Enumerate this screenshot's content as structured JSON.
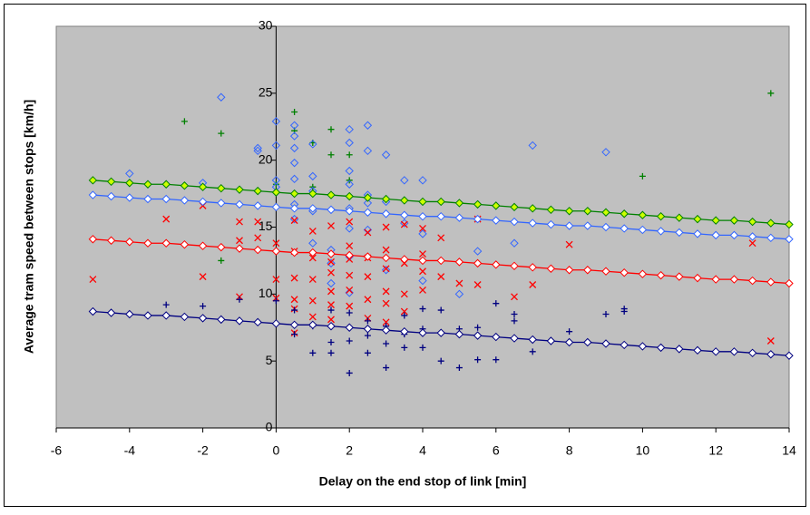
{
  "chart_data": {
    "type": "scatter",
    "x_label": "Delay on the end stop of link [min]",
    "y_label": "Average tram speed between stops [km/h]",
    "xlim": [
      -6,
      14
    ],
    "xticks": [
      -6,
      -4,
      -2,
      0,
      2,
      4,
      6,
      8,
      10,
      12,
      14
    ],
    "ylim": [
      0,
      30
    ],
    "yticks": [
      0,
      5,
      10,
      15,
      20,
      25,
      30
    ],
    "grid": false,
    "background": "#c0c0c0",
    "series": [
      {
        "mode": "markers",
        "marker": "plus",
        "color": "#008000",
        "x": [
          -2.5,
          -1.5,
          -1.5,
          0.5,
          0.5,
          1,
          1.5,
          1.5,
          2,
          2,
          13.5,
          10,
          1,
          0
        ],
        "values": [
          22.9,
          22,
          12.5,
          23.6,
          22.2,
          21.3,
          22.3,
          20.4,
          20.4,
          18.5,
          25,
          18.8,
          18,
          18.2
        ]
      },
      {
        "mode": "markers",
        "marker": "diamond",
        "color": "#3366ff",
        "x": [
          -4,
          -2,
          -1.5,
          -0.5,
          -0.5,
          0,
          0,
          0,
          0,
          0.5,
          0.5,
          0.5,
          0.5,
          0.5,
          0.5,
          0.5,
          1,
          1,
          1,
          1,
          1,
          1.5,
          1.5,
          1.5,
          2,
          2,
          2,
          2,
          2,
          2,
          2,
          2,
          2.5,
          2.5,
          2.5,
          2.5,
          2.5,
          3,
          3,
          3.5,
          3.5,
          4,
          4,
          4,
          5,
          5.5,
          6.5,
          7,
          9,
          1.5,
          3
        ],
        "values": [
          19,
          18.3,
          24.7,
          20.7,
          20.9,
          22.9,
          21.1,
          18.5,
          18,
          22.6,
          21.8,
          20.9,
          19.8,
          18.6,
          16.7,
          15.6,
          21.2,
          18.8,
          17.7,
          16.2,
          13.8,
          16.3,
          13.3,
          10.8,
          22.3,
          21.3,
          19.2,
          18.2,
          16.4,
          14.9,
          12.8,
          10.1,
          22.6,
          20.7,
          17.4,
          16.8,
          14.8,
          20.4,
          16.9,
          18.5,
          15.3,
          18.5,
          14.5,
          11,
          10,
          13.2,
          13.8,
          21.1,
          20.6,
          12.3,
          11.8
        ]
      },
      {
        "mode": "markers",
        "marker": "x",
        "color": "#ff0000",
        "x": [
          -5,
          -3,
          -2,
          -2,
          -1,
          -1,
          -1,
          -0.5,
          -0.5,
          0,
          0,
          0,
          0.5,
          0.5,
          0.5,
          0.5,
          0.5,
          0.5,
          1,
          1,
          1,
          1,
          1,
          1.5,
          1.5,
          1.5,
          1.5,
          1.5,
          1.5,
          2,
          2,
          2,
          2,
          2,
          2,
          2.5,
          2.5,
          2.5,
          2.5,
          2.5,
          3,
          3,
          3,
          3,
          3,
          3,
          3.5,
          3.5,
          3.5,
          3.5,
          4,
          4,
          4,
          4,
          4.5,
          4.5,
          5,
          5.5,
          5.5,
          6.5,
          7,
          8,
          13,
          13.5
        ],
        "values": [
          11.1,
          15.6,
          16.6,
          11.3,
          15.4,
          14,
          9.8,
          15.4,
          14.2,
          13.8,
          11.1,
          9.7,
          15.5,
          13.2,
          11.2,
          9.6,
          8.9,
          7.1,
          14.7,
          12.7,
          11.1,
          9.5,
          8.3,
          15.1,
          12.4,
          11.6,
          10.2,
          9.2,
          8.1,
          15.4,
          13.6,
          12.6,
          11.4,
          10.3,
          9.1,
          14.6,
          12.7,
          11.3,
          9.6,
          8.2,
          15,
          13.3,
          11.9,
          10.2,
          9.3,
          7.9,
          15.2,
          12.3,
          10,
          8.7,
          14.9,
          13,
          11.7,
          10.3,
          14.2,
          11.3,
          10.8,
          15.6,
          10.7,
          9.8,
          10.7,
          13.7,
          13.8,
          6.5
        ]
      },
      {
        "mode": "markers",
        "marker": "plus",
        "color": "#000080",
        "x": [
          -3,
          -2,
          -1,
          0,
          0.5,
          0.5,
          1,
          1,
          1.5,
          1.5,
          1.5,
          1.5,
          2,
          2,
          2,
          2.5,
          2.5,
          2.5,
          3,
          3,
          3,
          3.5,
          3.5,
          3.5,
          4,
          4,
          4,
          4.5,
          4.5,
          5,
          5,
          5.5,
          5.5,
          6,
          6,
          6.5,
          6.5,
          7,
          8,
          9,
          9.5,
          9.5
        ],
        "values": [
          9.2,
          9.1,
          9.6,
          9.5,
          8.8,
          7,
          7.6,
          5.6,
          8.8,
          7.6,
          6.4,
          5.6,
          8.6,
          6.5,
          4.1,
          8,
          6.9,
          5.6,
          7.6,
          6.3,
          4.5,
          8.4,
          7,
          6,
          8.9,
          7.4,
          6,
          8.8,
          5,
          7.4,
          4.5,
          7.5,
          5.1,
          9.3,
          5.1,
          8.5,
          8,
          5.7,
          7.2,
          8.5,
          8.9,
          8.7
        ]
      },
      {
        "mode": "line",
        "marker": "diamond",
        "color": "#008000",
        "marker_fill": "#ccff00",
        "x": [
          -5,
          -4.5,
          -4,
          -3.5,
          -3,
          -2.5,
          -2,
          -1.5,
          -1,
          -0.5,
          0,
          0.5,
          1,
          1.5,
          2,
          2.5,
          3,
          3.5,
          4,
          4.5,
          5,
          5.5,
          6,
          6.5,
          7,
          7.5,
          8,
          8.5,
          9,
          9.5,
          10,
          10.5,
          11,
          11.5,
          12,
          12.5,
          13,
          13.5,
          14
        ],
        "values": [
          18.5,
          18.4,
          18.3,
          18.2,
          18.2,
          18.1,
          18.0,
          17.9,
          17.8,
          17.7,
          17.6,
          17.5,
          17.5,
          17.4,
          17.3,
          17.2,
          17.1,
          17.0,
          16.9,
          16.9,
          16.8,
          16.7,
          16.6,
          16.5,
          16.4,
          16.3,
          16.2,
          16.2,
          16.1,
          16.0,
          15.9,
          15.8,
          15.7,
          15.6,
          15.5,
          15.5,
          15.4,
          15.3,
          15.2
        ]
      },
      {
        "mode": "line",
        "marker": "diamond",
        "color": "#3366ff",
        "marker_fill": "#ffffff",
        "x": [
          -5,
          -4.5,
          -4,
          -3.5,
          -3,
          -2.5,
          -2,
          -1.5,
          -1,
          -0.5,
          0,
          0.5,
          1,
          1.5,
          2,
          2.5,
          3,
          3.5,
          4,
          4.5,
          5,
          5.5,
          6,
          6.5,
          7,
          7.5,
          8,
          8.5,
          9,
          9.5,
          10,
          10.5,
          11,
          11.5,
          12,
          12.5,
          13,
          13.5,
          14
        ],
        "values": [
          17.4,
          17.3,
          17.2,
          17.1,
          17.1,
          17.0,
          16.9,
          16.8,
          16.7,
          16.6,
          16.5,
          16.4,
          16.4,
          16.3,
          16.2,
          16.1,
          16.0,
          15.9,
          15.8,
          15.8,
          15.7,
          15.6,
          15.5,
          15.4,
          15.3,
          15.2,
          15.1,
          15.1,
          15.0,
          14.9,
          14.8,
          14.7,
          14.6,
          14.5,
          14.4,
          14.4,
          14.3,
          14.2,
          14.1
        ]
      },
      {
        "mode": "line",
        "marker": "diamond",
        "color": "#ff0000",
        "marker_fill": "#ffffff",
        "x": [
          -5,
          -4.5,
          -4,
          -3.5,
          -3,
          -2.5,
          -2,
          -1.5,
          -1,
          -0.5,
          0,
          0.5,
          1,
          1.5,
          2,
          2.5,
          3,
          3.5,
          4,
          4.5,
          5,
          5.5,
          6,
          6.5,
          7,
          7.5,
          8,
          8.5,
          9,
          9.5,
          10,
          10.5,
          11,
          11.5,
          12,
          12.5,
          13,
          13.5,
          14
        ],
        "values": [
          14.1,
          14.0,
          13.9,
          13.8,
          13.8,
          13.7,
          13.6,
          13.5,
          13.4,
          13.3,
          13.2,
          13.1,
          13.1,
          13.0,
          12.9,
          12.8,
          12.7,
          12.6,
          12.5,
          12.5,
          12.4,
          12.3,
          12.2,
          12.1,
          12.0,
          11.9,
          11.8,
          11.8,
          11.7,
          11.6,
          11.5,
          11.4,
          11.3,
          11.2,
          11.1,
          11.1,
          11.0,
          10.9,
          10.8
        ]
      },
      {
        "mode": "line",
        "marker": "diamond",
        "color": "#000080",
        "marker_fill": "#ffffff",
        "x": [
          -5,
          -4.5,
          -4,
          -3.5,
          -3,
          -2.5,
          -2,
          -1.5,
          -1,
          -0.5,
          0,
          0.5,
          1,
          1.5,
          2,
          2.5,
          3,
          3.5,
          4,
          4.5,
          5,
          5.5,
          6,
          6.5,
          7,
          7.5,
          8,
          8.5,
          9,
          9.5,
          10,
          10.5,
          11,
          11.5,
          12,
          12.5,
          13,
          13.5,
          14
        ],
        "values": [
          8.7,
          8.6,
          8.5,
          8.4,
          8.4,
          8.3,
          8.2,
          8.1,
          8.0,
          7.9,
          7.8,
          7.7,
          7.7,
          7.6,
          7.5,
          7.4,
          7.3,
          7.2,
          7.1,
          7.1,
          7.0,
          6.9,
          6.8,
          6.7,
          6.6,
          6.5,
          6.4,
          6.4,
          6.3,
          6.2,
          6.1,
          6.0,
          5.9,
          5.8,
          5.7,
          5.7,
          5.6,
          5.5,
          5.4
        ]
      }
    ]
  }
}
